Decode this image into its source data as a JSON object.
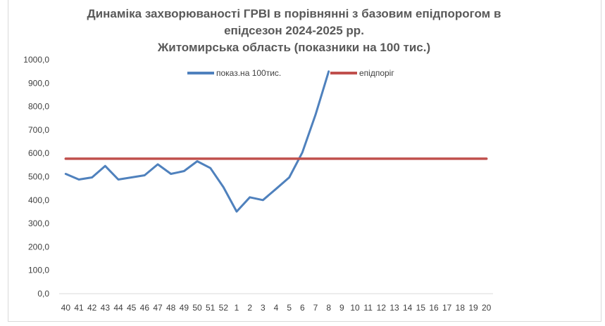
{
  "chart_data": {
    "type": "line",
    "title_lines": [
      "Динаміка захворюваності ГРВІ в порівнянні з базовим епідпорогом в",
      "епідсезон 2024-2025 рр.",
      "Житомирська область (показники на 100 тис.)"
    ],
    "categories": [
      "40",
      "41",
      "42",
      "43",
      "44",
      "45",
      "46",
      "47",
      "48",
      "49",
      "50",
      "51",
      "52",
      "1",
      "2",
      "3",
      "4",
      "5",
      "6",
      "7",
      "8",
      "9",
      "10",
      "11",
      "12",
      "13",
      "14",
      "15",
      "16",
      "17",
      "18",
      "19",
      "20"
    ],
    "y_ticks": [
      "0,0",
      "100,0",
      "200,0",
      "300,0",
      "400,0",
      "500,0",
      "600,0",
      "700,0",
      "800,0",
      "900,0",
      "1000,0"
    ],
    "ylim": [
      0,
      1000
    ],
    "grid": false,
    "legend_position": "top",
    "series": [
      {
        "name": "показ.на 100тис.",
        "color": "#4f81bd",
        "values": [
          512,
          488,
          497,
          546,
          488,
          497,
          506,
          553,
          512,
          524,
          566,
          537,
          455,
          351,
          412,
          400,
          448,
          497,
          604,
          765,
          950,
          null,
          null,
          null,
          null,
          null,
          null,
          null,
          null,
          null,
          null,
          null,
          null
        ]
      },
      {
        "name": "епідпоріг",
        "color": "#c0504d",
        "values": [
          577,
          577,
          577,
          577,
          577,
          577,
          577,
          577,
          577,
          577,
          577,
          577,
          577,
          577,
          577,
          577,
          577,
          577,
          577,
          577,
          577,
          577,
          577,
          577,
          577,
          577,
          577,
          577,
          577,
          577,
          577,
          577,
          577
        ]
      }
    ]
  }
}
